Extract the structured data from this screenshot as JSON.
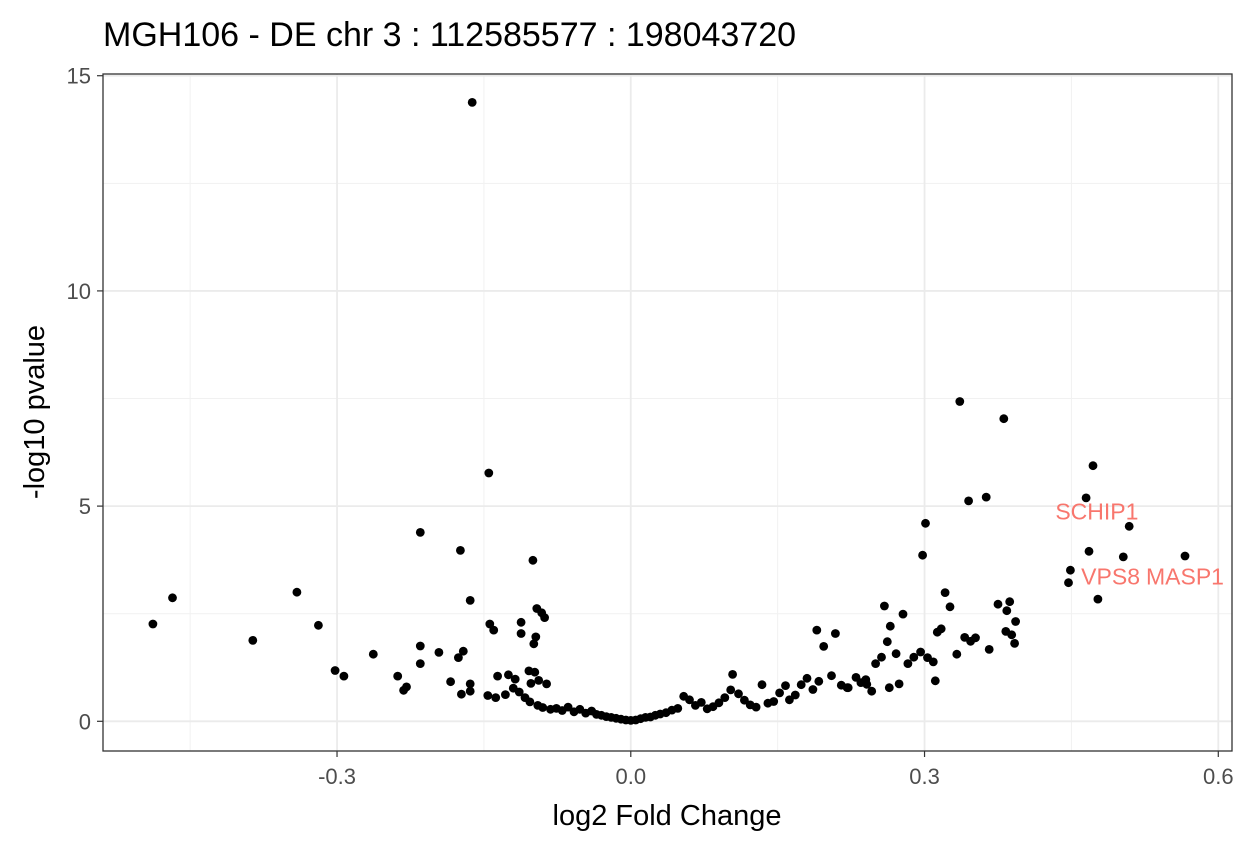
{
  "chart_data": {
    "type": "scatter",
    "title": "MGH106 - DE chr 3 : 112585577 : 198043720",
    "xlabel": "log2 Fold Change",
    "ylabel": "-log10 pvalue",
    "xlim": [
      -0.539,
      0.614
    ],
    "ylim": [
      -0.69,
      15.04
    ],
    "xticks": [
      -0.3,
      0.0,
      0.3,
      0.6
    ],
    "xtick_labels": [
      "-0.3",
      "0.0",
      "0.3",
      "0.6"
    ],
    "yticks": [
      0,
      5,
      10,
      15
    ],
    "ytick_labels": [
      "0",
      "5",
      "10",
      "15"
    ],
    "grid": true,
    "point_color": "#000000",
    "annotation_color": "#f8766d",
    "annotations": [
      {
        "label": "SCHIP1",
        "x": 0.476,
        "y": 4.87
      },
      {
        "label": "VPS8",
        "x": 0.49,
        "y": 3.36
      },
      {
        "label": "MASP1",
        "x": 0.566,
        "y": 3.36
      }
    ],
    "points": [
      [
        -0.162,
        14.38
      ],
      [
        0.336,
        7.43
      ],
      [
        0.381,
        7.03
      ],
      [
        -0.145,
        5.77
      ],
      [
        0.472,
        5.94
      ],
      [
        0.363,
        5.21
      ],
      [
        0.345,
        5.12
      ],
      [
        0.465,
        5.19
      ],
      [
        0.509,
        4.53
      ],
      [
        0.301,
        4.6
      ],
      [
        0.298,
        3.86
      ],
      [
        0.468,
        3.95
      ],
      [
        0.503,
        3.82
      ],
      [
        0.566,
        3.84
      ],
      [
        0.449,
        3.51
      ],
      [
        0.447,
        3.22
      ],
      [
        0.477,
        2.84
      ],
      [
        -0.215,
        4.39
      ],
      [
        -0.174,
        3.97
      ],
      [
        -0.1,
        3.74
      ],
      [
        -0.468,
        2.87
      ],
      [
        -0.488,
        2.26
      ],
      [
        -0.341,
        3.0
      ],
      [
        -0.319,
        2.23
      ],
      [
        -0.386,
        1.88
      ],
      [
        -0.164,
        2.81
      ],
      [
        -0.096,
        2.62
      ],
      [
        -0.091,
        2.52
      ],
      [
        -0.088,
        2.41
      ],
      [
        -0.144,
        2.26
      ],
      [
        -0.14,
        2.12
      ],
      [
        -0.112,
        2.3
      ],
      [
        -0.112,
        2.04
      ],
      [
        -0.097,
        1.96
      ],
      [
        -0.099,
        1.8
      ],
      [
        -0.215,
        1.75
      ],
      [
        -0.196,
        1.6
      ],
      [
        -0.171,
        1.63
      ],
      [
        -0.176,
        1.48
      ],
      [
        -0.263,
        1.56
      ],
      [
        -0.215,
        1.34
      ],
      [
        -0.302,
        1.18
      ],
      [
        -0.293,
        1.05
      ],
      [
        -0.238,
        1.05
      ],
      [
        -0.229,
        0.8
      ],
      [
        -0.232,
        0.72
      ],
      [
        -0.184,
        0.92
      ],
      [
        -0.164,
        0.87
      ],
      [
        -0.173,
        0.63
      ],
      [
        -0.164,
        0.7
      ],
      [
        -0.136,
        1.05
      ],
      [
        -0.125,
        1.08
      ],
      [
        -0.118,
        0.98
      ],
      [
        -0.104,
        1.17
      ],
      [
        -0.098,
        1.14
      ],
      [
        -0.094,
        0.95
      ],
      [
        -0.102,
        0.88
      ],
      [
        -0.086,
        0.87
      ],
      [
        -0.146,
        0.6
      ],
      [
        -0.138,
        0.55
      ],
      [
        -0.128,
        0.62
      ],
      [
        -0.12,
        0.77
      ],
      [
        -0.114,
        0.68
      ],
      [
        -0.108,
        0.55
      ],
      [
        -0.103,
        0.45
      ],
      [
        -0.095,
        0.37
      ],
      [
        -0.09,
        0.32
      ],
      [
        -0.082,
        0.28
      ],
      [
        -0.076,
        0.3
      ],
      [
        -0.07,
        0.25
      ],
      [
        -0.064,
        0.33
      ],
      [
        -0.058,
        0.22
      ],
      [
        -0.052,
        0.28
      ],
      [
        -0.046,
        0.19
      ],
      [
        -0.04,
        0.24
      ],
      [
        -0.035,
        0.16
      ],
      [
        -0.03,
        0.14
      ],
      [
        -0.025,
        0.11
      ],
      [
        -0.02,
        0.09
      ],
      [
        -0.015,
        0.07
      ],
      [
        -0.01,
        0.05
      ],
      [
        -0.005,
        0.03
      ],
      [
        0.0,
        0.02
      ],
      [
        0.005,
        0.03
      ],
      [
        0.01,
        0.06
      ],
      [
        0.015,
        0.09
      ],
      [
        0.02,
        0.1
      ],
      [
        0.025,
        0.14
      ],
      [
        0.03,
        0.17
      ],
      [
        0.036,
        0.2
      ],
      [
        0.042,
        0.26
      ],
      [
        0.048,
        0.3
      ],
      [
        0.054,
        0.58
      ],
      [
        0.06,
        0.5
      ],
      [
        0.066,
        0.37
      ],
      [
        0.072,
        0.44
      ],
      [
        0.078,
        0.29
      ],
      [
        0.084,
        0.34
      ],
      [
        0.09,
        0.43
      ],
      [
        0.096,
        0.55
      ],
      [
        0.102,
        0.73
      ],
      [
        0.104,
        1.09
      ],
      [
        0.11,
        0.64
      ],
      [
        0.116,
        0.49
      ],
      [
        0.122,
        0.38
      ],
      [
        0.128,
        0.33
      ],
      [
        0.134,
        0.85
      ],
      [
        0.14,
        0.42
      ],
      [
        0.146,
        0.46
      ],
      [
        0.152,
        0.66
      ],
      [
        0.158,
        0.83
      ],
      [
        0.162,
        0.5
      ],
      [
        0.168,
        0.61
      ],
      [
        0.174,
        0.85
      ],
      [
        0.18,
        1.0
      ],
      [
        0.186,
        0.74
      ],
      [
        0.192,
        0.93
      ],
      [
        0.197,
        1.74
      ],
      [
        0.19,
        2.12
      ],
      [
        0.209,
        2.04
      ],
      [
        0.205,
        1.06
      ],
      [
        0.215,
        0.84
      ],
      [
        0.222,
        0.78
      ],
      [
        0.23,
        1.02
      ],
      [
        0.235,
        0.9
      ],
      [
        0.24,
        0.97
      ],
      [
        0.246,
        0.7
      ],
      [
        0.25,
        1.34
      ],
      [
        0.256,
        1.49
      ],
      [
        0.262,
        1.85
      ],
      [
        0.265,
        2.21
      ],
      [
        0.259,
        2.68
      ],
      [
        0.278,
        2.49
      ],
      [
        0.271,
        1.57
      ],
      [
        0.283,
        1.34
      ],
      [
        0.289,
        1.49
      ],
      [
        0.296,
        1.61
      ],
      [
        0.303,
        1.48
      ],
      [
        0.309,
        1.38
      ],
      [
        0.313,
        2.07
      ],
      [
        0.317,
        2.15
      ],
      [
        0.321,
        2.99
      ],
      [
        0.326,
        2.66
      ],
      [
        0.333,
        1.56
      ],
      [
        0.341,
        1.95
      ],
      [
        0.347,
        1.86
      ],
      [
        0.352,
        1.94
      ],
      [
        0.366,
        1.67
      ],
      [
        0.375,
        2.72
      ],
      [
        0.383,
        2.09
      ],
      [
        0.384,
        2.57
      ],
      [
        0.387,
        2.78
      ],
      [
        0.389,
        2.01
      ],
      [
        0.393,
        2.32
      ],
      [
        0.392,
        1.81
      ],
      [
        0.311,
        0.94
      ],
      [
        0.274,
        0.87
      ],
      [
        0.264,
        0.78
      ],
      [
        0.241,
        0.86
      ],
      [
        0.221,
        0.78
      ]
    ]
  }
}
